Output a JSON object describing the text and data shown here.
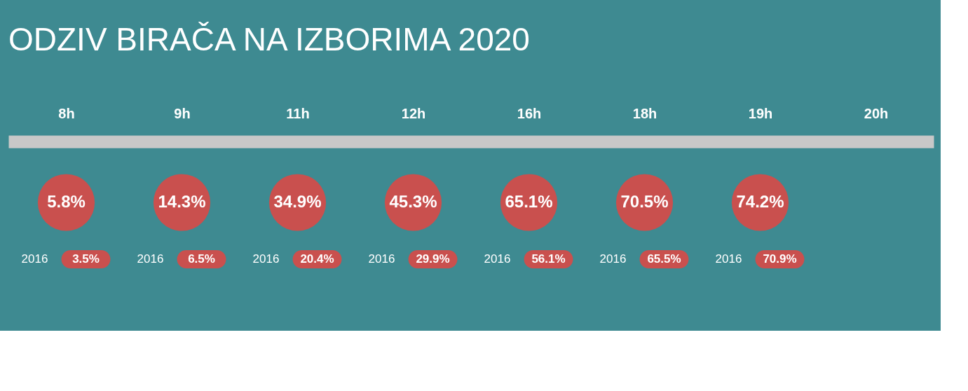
{
  "chart_data": {
    "type": "other",
    "title": "ODZIV BIRAČA NA IZBORIMA 2020",
    "categories": [
      "8h",
      "9h",
      "11h",
      "12h",
      "16h",
      "18h",
      "19h",
      "20h"
    ],
    "series": [
      {
        "color": "#c9504e",
        "values": [
          5.8,
          14.3,
          34.9,
          45.3,
          65.1,
          70.5,
          74.2,
          null
        ],
        "value_labels": [
          "5.8%",
          "14.3%",
          "34.9%",
          "45.3%",
          "65.1%",
          "70.5%",
          "74.2%",
          null
        ]
      },
      {
        "name": "2016",
        "color": "#c9504e",
        "values": [
          3.5,
          6.5,
          20.4,
          29.9,
          56.1,
          65.5,
          70.9,
          null
        ],
        "value_labels": [
          "3.5%",
          "6.5%",
          "20.4%",
          "29.9%",
          "56.1%",
          "65.5%",
          "70.9%",
          null
        ]
      }
    ]
  }
}
